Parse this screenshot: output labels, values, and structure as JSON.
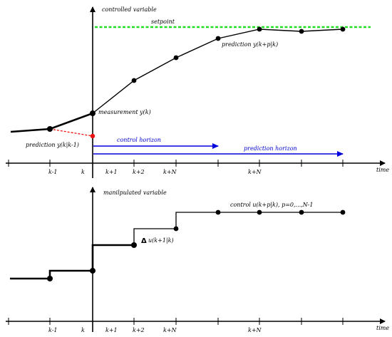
{
  "top": {
    "y_axis_label": "controlled variable",
    "x_axis_label": "time",
    "setpoint_label": "setpoint",
    "prediction_label": "prediction y(k+p|k)",
    "measurement_label": "measurement y(k)",
    "past_prediction_label": "prediction y(k|k-1)",
    "control_horizon_label": "control horizon",
    "prediction_horizon_label": "prediction horizon",
    "ticks": [
      "k-1",
      "k",
      "k+1",
      "k+2",
      "k+N",
      "k+N"
    ]
  },
  "bottom": {
    "y_axis_label": "manilpulated variable",
    "x_axis_label": "time",
    "control_label": "control u(k+p|k), p=0,...,N-1",
    "delta_symbol": "Δ",
    "delta_label": "u(k+1|k)",
    "ticks": [
      "k-1",
      "k",
      "k+1",
      "k+2",
      "k+N",
      "k+N"
    ]
  },
  "colors": {
    "setpoint": "#22dd22",
    "past_prediction": "#ee1111",
    "horizon_arrows": "#0000dd",
    "line": "#000000"
  }
}
